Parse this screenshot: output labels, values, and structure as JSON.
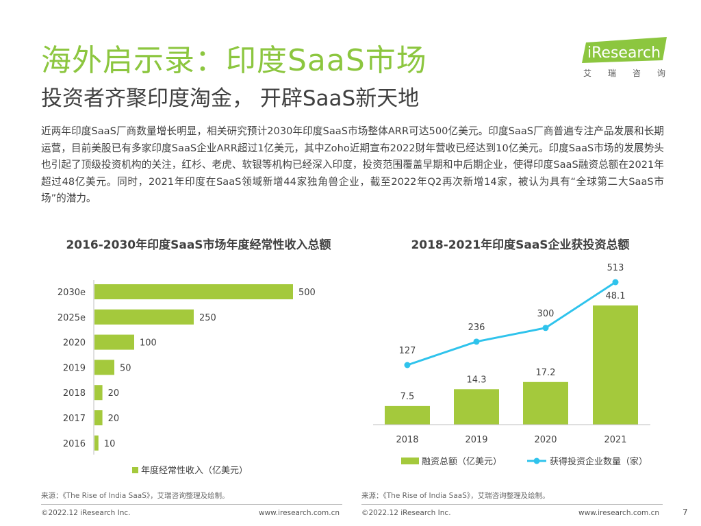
{
  "header": {
    "title": "海外启示录：印度SaaS市场",
    "subtitle": "投资者齐聚印度淘金， 开辟SaaS新天地",
    "logo_text": "iResearch",
    "logo_cn_chars": [
      "艾",
      "瑞",
      "咨",
      "询"
    ]
  },
  "body_text": "近两年印度SaaS厂商数量增长明显，相关研究预计2030年印度SaaS市场整体ARR可达500亿美元。印度SaaS厂商普遍专注产品发展和长期运营，目前美股已有多家印度SaaS企业ARR超过1亿美元，其中Zoho近期宣布2022财年营收已经达到10亿美元。印度SaaS市场的发展势头也引起了顶级投资机构的关注，红杉、老虎、软银等机构已经深入印度，投资范围覆盖早期和中后期企业，使得印度SaaS融资总额在2021年超过48亿美元。同时，2021年印度在SaaS领域新增44家独角兽企业，截至2022年Q2再次新增14家，被认为具有“全球第二大SaaS市场”的潜力。",
  "chart_data": [
    {
      "type": "bar",
      "orientation": "horizontal",
      "title": "2016-2030年印度SaaS市场年度经常性收入总额",
      "categories": [
        "2030e",
        "2025e",
        "2020",
        "2019",
        "2018",
        "2017",
        "2016"
      ],
      "series": [
        {
          "name": "年度经常性收入（亿美元）",
          "values": [
            500,
            250,
            100,
            50,
            20,
            20,
            10
          ]
        }
      ],
      "xlim": [
        0,
        500
      ],
      "grid": false,
      "legend_position": "bottom"
    },
    {
      "type": "bar",
      "title": "2018-2021年印度SaaS企业获投资总额",
      "categories": [
        "2018",
        "2019",
        "2020",
        "2021"
      ],
      "series": [
        {
          "name": "融资总额（亿美元）",
          "type": "bar",
          "values": [
            7.5,
            14.3,
            17.2,
            48.1
          ]
        },
        {
          "name": "获得投资企业数量（家）",
          "type": "line",
          "values": [
            127,
            236,
            300,
            513
          ]
        }
      ],
      "grid": false,
      "legend_position": "bottom"
    }
  ],
  "footer": {
    "source_left": "来源：《The Rise of India SaaS》，艾瑞咨询整理及绘制。",
    "source_right": "来源：《The Rise of India SaaS》，艾瑞咨询整理及绘制。",
    "copyright": "©2022.12 iResearch Inc.",
    "url": "www.iresearch.com.cn",
    "page_number": "7"
  },
  "colors": {
    "accent_green": "#8cc63f",
    "bar_green": "#a4c93c",
    "line_blue": "#2fc3ec",
    "text_dark": "#404040"
  }
}
